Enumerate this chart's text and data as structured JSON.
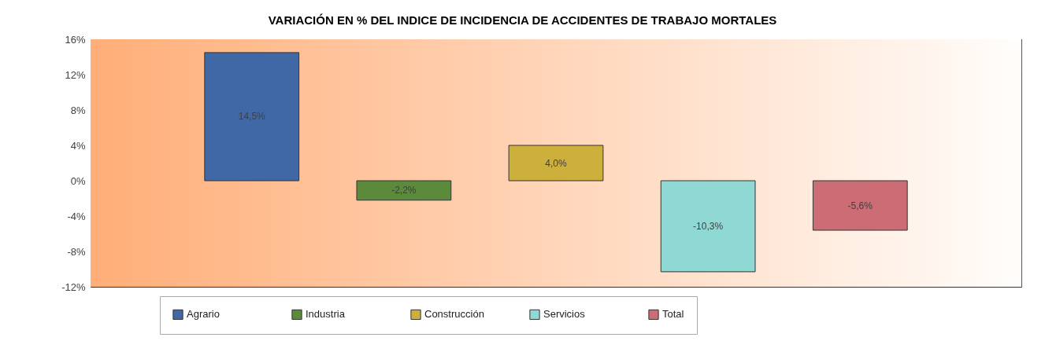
{
  "chart_data": {
    "type": "bar",
    "title": "VARIACIÓN EN % DEL INDICE DE INCIDENCIA DE ACCIDENTES DE TRABAJO MORTALES",
    "categories": [
      null,
      null,
      null,
      null,
      null
    ],
    "series": [
      {
        "name": "Agrario",
        "color": "#4068a4",
        "values": [
          14.5,
          null,
          null,
          null,
          null
        ],
        "value_labels": [
          "14,5%",
          null,
          null,
          null,
          null
        ]
      },
      {
        "name": "Industria",
        "color": "#5a8a3a",
        "values": [
          null,
          -2.2,
          null,
          null,
          null
        ],
        "value_labels": [
          null,
          "-2,2%",
          null,
          null,
          null
        ]
      },
      {
        "name": "Construcción",
        "color": "#cdb03c",
        "values": [
          null,
          null,
          4.0,
          null,
          null
        ],
        "value_labels": [
          null,
          null,
          "4,0%",
          null,
          null
        ]
      },
      {
        "name": "Servicios",
        "color": "#90d8d3",
        "values": [
          null,
          null,
          null,
          -10.3,
          null
        ],
        "value_labels": [
          null,
          null,
          null,
          "-10,3%",
          null
        ]
      },
      {
        "name": "Total",
        "color": "#cc6c74",
        "values": [
          null,
          null,
          null,
          null,
          -5.6
        ],
        "value_labels": [
          null,
          null,
          null,
          null,
          "-5,6%"
        ]
      }
    ],
    "ylim": [
      -12,
      16
    ],
    "yticks": [
      {
        "value": -12,
        "label": "-12%"
      },
      {
        "value": -8,
        "label": "-8%"
      },
      {
        "value": -4,
        "label": "-4%"
      },
      {
        "value": 0,
        "label": "0%"
      },
      {
        "value": 4,
        "label": "4%"
      },
      {
        "value": 8,
        "label": "8%"
      },
      {
        "value": 12,
        "label": "12%"
      },
      {
        "value": 16,
        "label": "16%"
      }
    ],
    "grid": "y",
    "legend": "bottom",
    "tick_labels": "y"
  }
}
